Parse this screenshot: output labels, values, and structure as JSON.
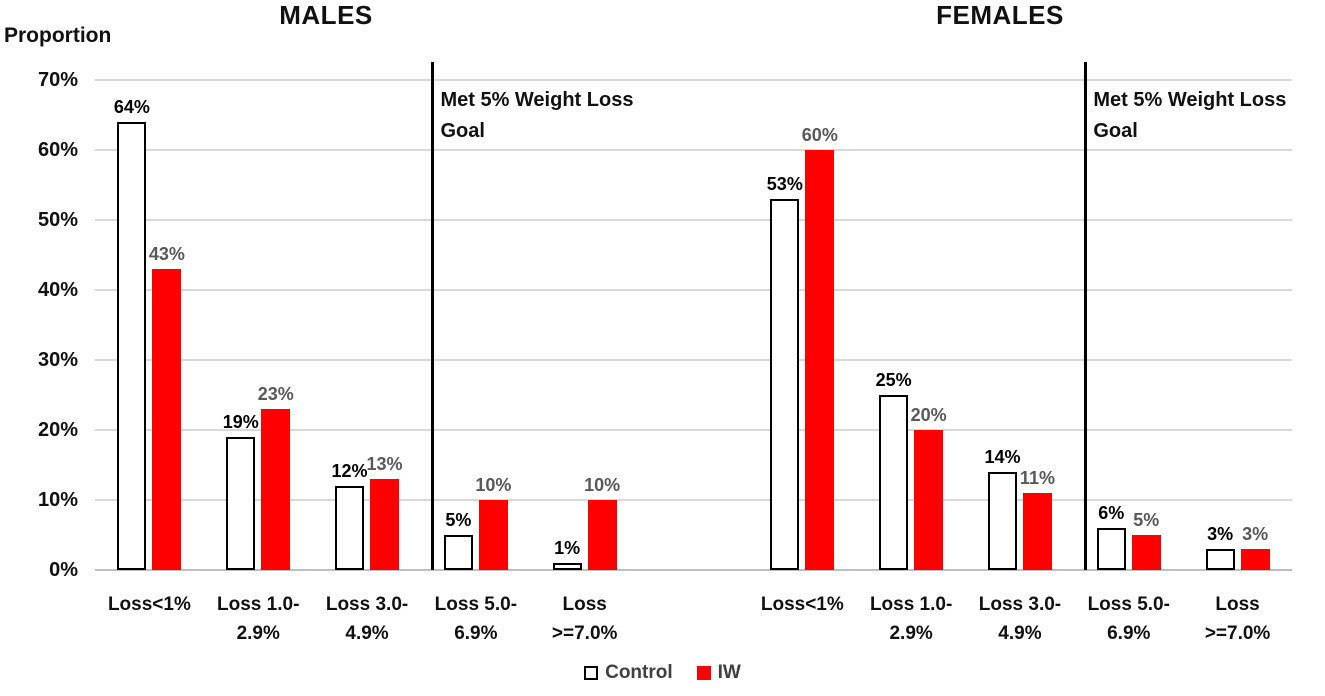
{
  "chart_data": {
    "type": "bar",
    "title": "",
    "ylabel": "Proportion",
    "xlabel": "",
    "ylim": [
      0,
      70
    ],
    "unit": "percent",
    "grid": true,
    "legend_position": "bottom",
    "ytick_labels": [
      "0%",
      "10%",
      "20%",
      "30%",
      "40%",
      "50%",
      "60%",
      "70%"
    ],
    "panels": [
      {
        "title": "MALES",
        "annotation": "Met 5% Weight Loss Goal",
        "annotation_lines": [
          "Met 5% Weight Loss",
          "Goal"
        ],
        "categories": [
          "Loss<1%",
          "Loss 1.0-2.9%",
          "Loss 3.0-4.9%",
          "Loss 5.0-6.9%",
          "Loss >=7.0%"
        ],
        "category_label_lines": [
          [
            "Loss<1%"
          ],
          [
            "Loss 1.0-",
            "2.9%"
          ],
          [
            "Loss 3.0-",
            "4.9%"
          ],
          [
            "Loss 5.0-",
            "6.9%"
          ],
          [
            "Loss",
            ">=7.0%"
          ]
        ],
        "divider_before_category_index": 3,
        "series": [
          {
            "name": "Control",
            "values": [
              64,
              19,
              12,
              5,
              1
            ],
            "labels": [
              "64%",
              "19%",
              "12%",
              "5%",
              "1%"
            ]
          },
          {
            "name": "IW",
            "values": [
              43,
              23,
              13,
              10,
              10
            ],
            "labels": [
              "43%",
              "23%",
              "13%",
              "10%",
              "10%"
            ]
          }
        ]
      },
      {
        "title": "FEMALES",
        "annotation": "Met 5% Weight Loss Goal",
        "annotation_lines": [
          "Met 5% Weight Loss",
          "Goal"
        ],
        "categories": [
          "Loss<1%",
          "Loss 1.0-2.9%",
          "Loss 3.0-4.9%",
          "Loss 5.0-6.9%",
          "Loss >=7.0%"
        ],
        "category_label_lines": [
          [
            "Loss<1%"
          ],
          [
            "Loss 1.0-",
            "2.9%"
          ],
          [
            "Loss 3.0-",
            "4.9%"
          ],
          [
            "Loss 5.0-",
            "6.9%"
          ],
          [
            "Loss",
            ">=7.0%"
          ]
        ],
        "divider_before_category_index": 3,
        "series": [
          {
            "name": "Control",
            "values": [
              53,
              25,
              14,
              6,
              3
            ],
            "labels": [
              "53%",
              "25%",
              "14%",
              "6%",
              "3%"
            ]
          },
          {
            "name": "IW",
            "values": [
              60,
              20,
              11,
              5,
              3
            ],
            "labels": [
              "60%",
              "20%",
              "11%",
              "5%",
              "3%"
            ]
          }
        ]
      }
    ],
    "legend": [
      {
        "label": "Control",
        "fill": "#FFFFFF",
        "border": "#000000"
      },
      {
        "label": "IW",
        "fill": "#FF0000",
        "border": "#FF0000"
      }
    ],
    "colors": {
      "control_fill": "#FFFFFF",
      "control_border": "#000000",
      "iw_fill": "#FF0000",
      "gridline": "#D9D9D9",
      "axis_line": "#BFBFBF",
      "divider": "#000000",
      "control_label_text": "#000000",
      "iw_label_text": "#595959",
      "legend_text": "#404040"
    }
  }
}
